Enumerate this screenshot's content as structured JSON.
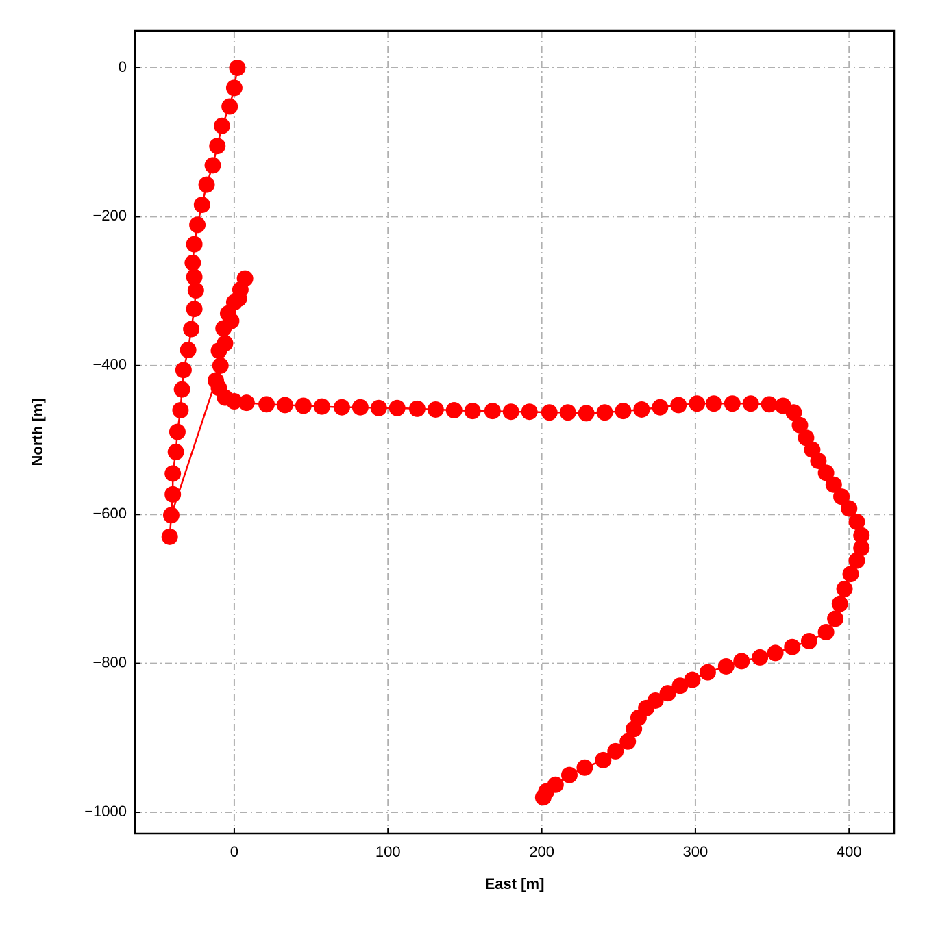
{
  "chart_data": {
    "type": "line",
    "xlabel": "East [m]",
    "ylabel": "North [m]",
    "xlim": [
      -64.6,
      429.3
    ],
    "ylim": [
      -1028.5,
      49.7
    ],
    "xticks": [
      0,
      100,
      200,
      300,
      400
    ],
    "yticks": [
      0,
      {
        "value": -200,
        "label": "−200"
      },
      {
        "value": -400,
        "label": "−400"
      },
      {
        "value": -600,
        "label": "−600"
      },
      {
        "value": -800,
        "label": "−800"
      },
      {
        "value": -1000,
        "label": "−1000"
      }
    ],
    "grid": true,
    "color": "#ff0000",
    "x": [
      2,
      0,
      -3,
      -8,
      -11,
      -14,
      -18,
      -21,
      -24,
      -26,
      -27,
      -26,
      -25,
      -26,
      -28,
      -30,
      -33,
      -34,
      -35,
      -37,
      -38,
      -40,
      -40,
      -42,
      -41,
      -12,
      -10,
      -7,
      -4,
      0,
      4,
      7,
      3,
      -2,
      -6,
      -9,
      -10,
      -6,
      0,
      8,
      21,
      33,
      45,
      57,
      70,
      82,
      94,
      106,
      119,
      131,
      143,
      155,
      168,
      180,
      192,
      205,
      217,
      229,
      241,
      253,
      265,
      277,
      289,
      301,
      312,
      324,
      336,
      348,
      357,
      364,
      368,
      372,
      376,
      380,
      385,
      390,
      395,
      400,
      405,
      408,
      408,
      405,
      401,
      397,
      394,
      391,
      385,
      374,
      363,
      352,
      342,
      330,
      320,
      308,
      298,
      290,
      282,
      274,
      268,
      263,
      260,
      256,
      248,
      240,
      228,
      218,
      209,
      203,
      201
    ],
    "y": [
      0,
      -27,
      -52,
      -78,
      -105,
      -131,
      -157,
      -184,
      -211,
      -237,
      -262,
      -281,
      -299,
      -324,
      -351,
      -379,
      -406,
      -432,
      -460,
      -489,
      -516,
      -545,
      -573,
      -630,
      -601,
      -420,
      -380,
      -350,
      -330,
      -315,
      -298,
      -283,
      -310,
      -340,
      -370,
      -400,
      -430,
      -443,
      -448,
      -450,
      -452,
      -453,
      -454,
      -455,
      -456,
      -456,
      -457,
      -457,
      -458,
      -459,
      -460,
      -461,
      -461,
      -462,
      -462,
      -463,
      -463,
      -464,
      -463,
      -461,
      -459,
      -456,
      -453,
      -451,
      -451,
      -451,
      -451,
      -452,
      -454,
      -463,
      -480,
      -497,
      -513,
      -528,
      -544,
      -560,
      -576,
      -592,
      -610,
      -628,
      -645,
      -662,
      -680,
      -700,
      -720,
      -740,
      -758,
      -770,
      -778,
      -786,
      -792,
      -797,
      -804,
      -812,
      -822,
      -830,
      -840,
      -850,
      -860,
      -873,
      -888,
      -905,
      -918,
      -930,
      -940,
      -950,
      -963,
      -972,
      -980
    ]
  }
}
